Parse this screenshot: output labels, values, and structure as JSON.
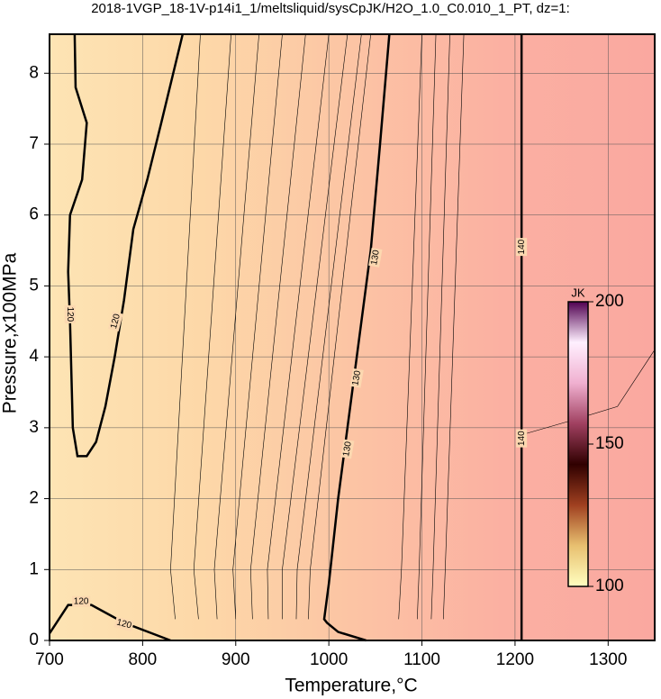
{
  "chart_data": {
    "type": "contour",
    "title": "2018-1VGP_18-1V-p14i1_1/meltsliquid/sysCpJK/H2O_1.0_C0.010_1_PT, dz=1:",
    "x_label": "Temperature,°C",
    "y_label": "Pressure,x100MPa",
    "xlim": [
      700,
      1350
    ],
    "ylim": [
      0,
      8.55
    ],
    "xticks": [
      700,
      800,
      900,
      1000,
      1100,
      1200,
      1300
    ],
    "yticks": [
      0,
      1,
      2,
      3,
      4,
      5,
      6,
      7,
      8
    ],
    "grid": true,
    "background_colors": [
      "#fde4b4",
      "#fdd8a8",
      "#fcc4a4",
      "#fbb0a2",
      "#faa8a0"
    ],
    "contours": [
      {
        "bold": true,
        "x": [
          727,
          728,
          740,
          735,
          722,
          720,
          722,
          725,
          730,
          740,
          750,
          760,
          770,
          780,
          790,
          805,
          820,
          843
        ],
        "y": [
          8.55,
          7.8,
          7.3,
          6.5,
          6,
          5.2,
          4.5,
          3,
          2.6,
          2.6,
          2.8,
          3.3,
          4,
          4.8,
          5.8,
          6.5,
          7.3,
          8.55
        ]
      },
      {
        "bold": true,
        "x": [
          700,
          710,
          720,
          745,
          780,
          810,
          830
        ],
        "y": [
          0.1,
          0.3,
          0.5,
          0.5,
          0.25,
          0.1,
          0
        ]
      },
      {
        "bold": true,
        "x": [
          1040,
          1010,
          998,
          995,
          1000,
          1010,
          1020,
          1030,
          1045,
          1055,
          1065
        ],
        "y": [
          0,
          0.12,
          0.25,
          0.3,
          0.8,
          2,
          3,
          4,
          5.5,
          7,
          8.55
        ]
      },
      {
        "bold": true,
        "x": [
          1207,
          1207
        ],
        "y": [
          0,
          8.55
        ]
      },
      {
        "bold": false,
        "x": [
          835,
          830,
          862
        ],
        "y": [
          0.3,
          1,
          8.55
        ]
      },
      {
        "bold": false,
        "x": [
          860,
          855,
          895
        ],
        "y": [
          0.3,
          1,
          8.55
        ]
      },
      {
        "bold": false,
        "x": [
          880,
          877,
          925
        ],
        "y": [
          0.3,
          1,
          8.55
        ]
      },
      {
        "bold": false,
        "x": [
          900,
          897,
          950
        ],
        "y": [
          0.3,
          1,
          8.55
        ]
      },
      {
        "bold": false,
        "x": [
          918,
          916,
          975
        ],
        "y": [
          0.3,
          1,
          8.55
        ]
      },
      {
        "bold": false,
        "x": [
          935,
          934,
          1000
        ],
        "y": [
          0.3,
          1,
          8.55
        ]
      },
      {
        "bold": false,
        "x": [
          950,
          950,
          1020
        ],
        "y": [
          0.3,
          1,
          8.55
        ]
      },
      {
        "bold": false,
        "x": [
          965,
          966,
          1035
        ],
        "y": [
          0.3,
          1,
          8.55
        ]
      },
      {
        "bold": false,
        "x": [
          978,
          980,
          1045
        ],
        "y": [
          0.3,
          1,
          8.55
        ]
      },
      {
        "bold": false,
        "x": [
          1075,
          1078,
          1100
        ],
        "y": [
          0.3,
          1,
          8.55
        ]
      },
      {
        "bold": false,
        "x": [
          1095,
          1097,
          1115
        ],
        "y": [
          0.3,
          1,
          8.55
        ]
      },
      {
        "bold": false,
        "x": [
          1110,
          1112,
          1130
        ],
        "y": [
          0.3,
          1,
          8.55
        ]
      },
      {
        "bold": false,
        "x": [
          1123,
          1125,
          1145
        ],
        "y": [
          0.3,
          1,
          8.55
        ]
      },
      {
        "bold": false,
        "x": [
          1207,
          1260,
          1310,
          1350
        ],
        "y": [
          2.9,
          3.1,
          3.3,
          4.1
        ]
      }
    ],
    "contour_labels": [
      {
        "text": "120",
        "x": 722,
        "y": 4.6,
        "angle": 90
      },
      {
        "text": "120",
        "x": 771,
        "y": 4.5,
        "angle": -75
      },
      {
        "text": "120",
        "x": 734,
        "y": 0.55,
        "angle": 0
      },
      {
        "text": "120",
        "x": 780,
        "y": 0.23,
        "angle": 15
      },
      {
        "text": "130",
        "x": 1050,
        "y": 5.4,
        "angle": -80
      },
      {
        "text": "130",
        "x": 1020,
        "y": 2.7,
        "angle": -80
      },
      {
        "text": "130",
        "x": 1030,
        "y": 3.7,
        "angle": -80
      },
      {
        "text": "140",
        "x": 1207,
        "y": 5.55,
        "angle": -90
      },
      {
        "text": "140",
        "x": 1207,
        "y": 2.85,
        "angle": -90
      }
    ],
    "colorbar": {
      "label": "JK",
      "lim": [
        100,
        200
      ],
      "ticks": [
        100,
        150,
        200
      ],
      "colors": [
        "#ffffc0",
        "#e8c070",
        "#a04020",
        "#300000",
        "#a04060",
        "#f0b0d0",
        "#fff0ff",
        "#500050"
      ]
    }
  }
}
